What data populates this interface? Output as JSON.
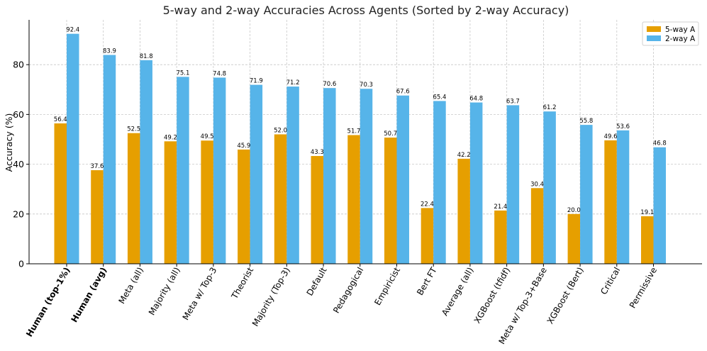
{
  "chart_data": {
    "type": "bar",
    "title": "5-way and 2-way Accuracies Across Agents (Sorted by 2-way Accuracy)",
    "xlabel": "",
    "ylabel": "Accuracy (%)",
    "ylim": [
      0,
      98
    ],
    "yticks": [
      0,
      20,
      40,
      60,
      80
    ],
    "grid": true,
    "legend_position": "top-right",
    "categories": [
      "Human (top-1%)",
      "Human (avg)",
      "Meta (all)",
      "Majority (all)",
      "Meta w/ Top-3",
      "Theorist",
      "Majority (Top-3)",
      "Default",
      "Pedagogical",
      "Empiricist",
      "Bert FT",
      "Average (all)",
      "XGBoost (tfidf)",
      "Meta w/ Top-3+Base",
      "XGBoost (Bert)",
      "Critical",
      "Permissive"
    ],
    "bold_categories": [
      "Human (top-1%)",
      "Human (avg)"
    ],
    "series": [
      {
        "name": "5-way A",
        "color": "#E69F00",
        "values": [
          56.4,
          37.6,
          52.5,
          49.2,
          49.5,
          45.9,
          52.0,
          43.3,
          51.7,
          50.7,
          22.4,
          42.2,
          21.4,
          30.4,
          20.0,
          49.6,
          19.1
        ],
        "labels": [
          "56.4",
          "37.6",
          "52.5",
          "49.2",
          "49.5",
          "45.9",
          "52.0",
          "43.3",
          "51.7",
          "50.7",
          "22.4",
          "42.2",
          "21.4",
          "30.4",
          "20.0",
          "49.6",
          "19.1"
        ]
      },
      {
        "name": "2-way A",
        "color": "#56B4E9",
        "values": [
          92.4,
          83.9,
          81.8,
          75.1,
          74.8,
          71.9,
          71.2,
          70.6,
          70.3,
          67.6,
          65.4,
          64.8,
          63.7,
          61.2,
          55.8,
          53.6,
          46.8
        ],
        "labels": [
          "92.4",
          "83.9",
          "81.8",
          "75.1",
          "74.8",
          "71.9",
          "71.2",
          "70.6",
          "70.3",
          "67.6",
          "65.4",
          "64.8",
          "63.7",
          "61.2",
          "55.8",
          "53.6",
          "46.8"
        ]
      }
    ]
  }
}
